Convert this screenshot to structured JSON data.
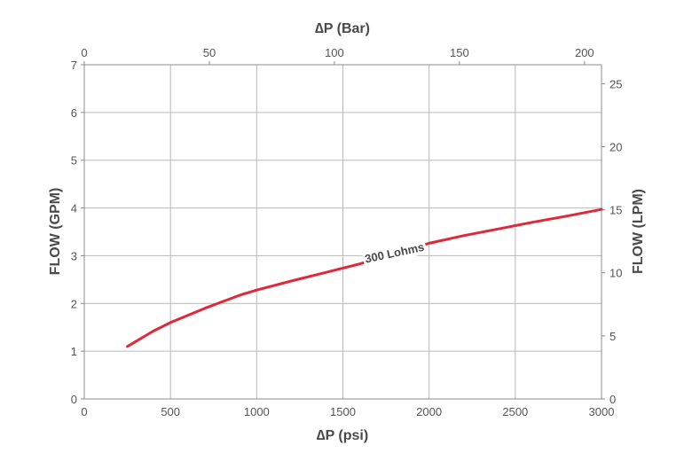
{
  "chart_data": {
    "type": "line",
    "xlabel": "∆P (psi)",
    "x2label": "∆P (Bar)",
    "ylabel": "FLOW (GPM)",
    "y2label": "FLOW (LPM)",
    "xlim": [
      0,
      3000
    ],
    "ylim": [
      0,
      7
    ],
    "x2lim": [
      0,
      206.8
    ],
    "y2lim": [
      0,
      26.5
    ],
    "x_ticks": [
      0,
      500,
      1000,
      1500,
      2000,
      2500,
      3000
    ],
    "y_ticks": [
      0,
      1,
      2,
      3,
      4,
      5,
      6,
      7
    ],
    "x2_ticks": [
      0,
      50,
      100,
      150,
      200
    ],
    "y2_ticks": [
      0,
      5,
      10,
      15,
      20,
      25
    ],
    "grid": true,
    "line_color": "#e0283a",
    "series": [
      {
        "name": "300 Lohms",
        "x": [
          250,
          400,
          500,
          700,
          900,
          1000,
          1200,
          1400,
          1600,
          1800,
          2000,
          2200,
          2400,
          2600,
          2800,
          3000
        ],
        "y": [
          1.1,
          1.42,
          1.6,
          1.9,
          2.17,
          2.28,
          2.47,
          2.65,
          2.83,
          3.05,
          3.26,
          3.42,
          3.56,
          3.7,
          3.83,
          3.97
        ]
      }
    ]
  }
}
